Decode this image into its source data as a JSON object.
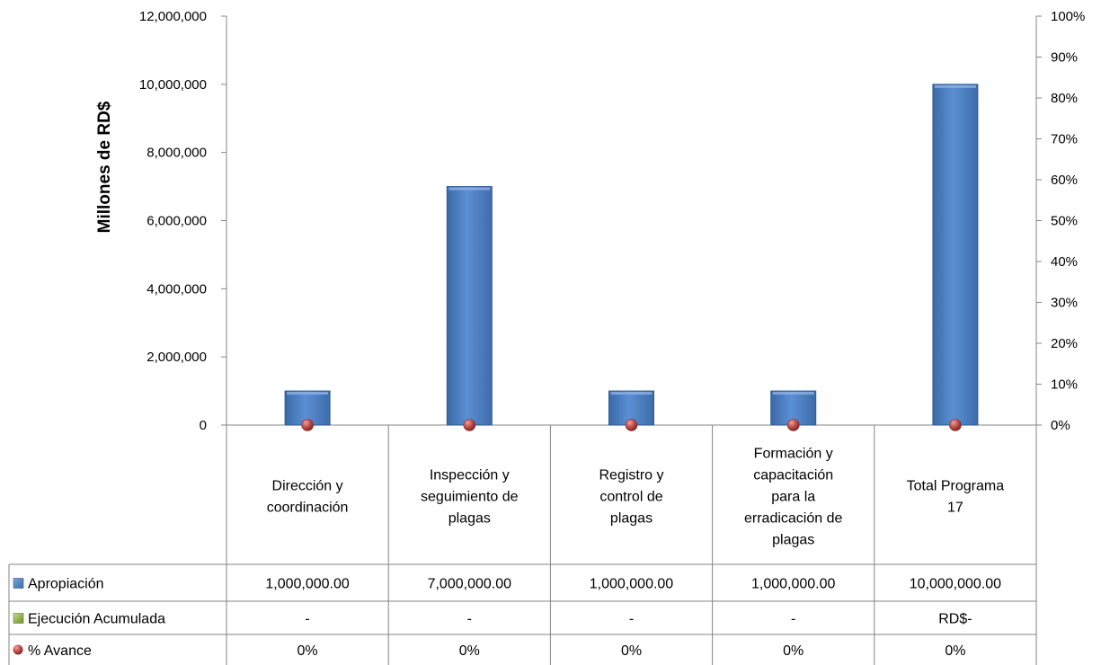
{
  "chart_data": {
    "type": "bar",
    "ylabel": "Millones de RD$",
    "ylim": [
      0,
      12000000
    ],
    "y_ticks": [
      "0",
      "2,000,000",
      "4,000,000",
      "6,000,000",
      "8,000,000",
      "10,000,000",
      "12,000,000"
    ],
    "y2lim": [
      0,
      1
    ],
    "y2_ticks": [
      "0%",
      "10%",
      "20%",
      "30%",
      "40%",
      "50%",
      "60%",
      "70%",
      "80%",
      "90%",
      "100%"
    ],
    "categories": [
      [
        "Dirección y",
        "coordinación"
      ],
      [
        "Inspección y",
        "seguimiento de",
        "plagas"
      ],
      [
        "Registro y",
        "control de",
        "plagas"
      ],
      [
        "Formación y",
        "capacitación",
        "para la",
        "erradicación de",
        "plagas"
      ],
      [
        "Total Programa",
        "17"
      ]
    ],
    "series": [
      {
        "name": "Apropiación",
        "type": "bar",
        "axis": "left",
        "color": "#4f81bd",
        "values": [
          1000000,
          7000000,
          1000000,
          1000000,
          10000000
        ]
      },
      {
        "name": "Ejecución Acumulada",
        "type": "bar",
        "axis": "left",
        "color": "#9bbb59",
        "values": [
          0,
          0,
          0,
          0,
          0
        ]
      },
      {
        "name": "% Avance",
        "type": "marker",
        "axis": "right",
        "color": "#c0504d",
        "values": [
          0,
          0,
          0,
          0,
          0
        ]
      }
    ],
    "table": [
      [
        "1,000,000.00",
        "7,000,000.00",
        "1,000,000.00",
        "1,000,000.00",
        "10,000,000.00"
      ],
      [
        "-",
        "-",
        "-",
        "-",
        "RD$-"
      ],
      [
        "0%",
        "0%",
        "0%",
        "0%",
        "0%"
      ]
    ],
    "legend_position": "data-table"
  }
}
